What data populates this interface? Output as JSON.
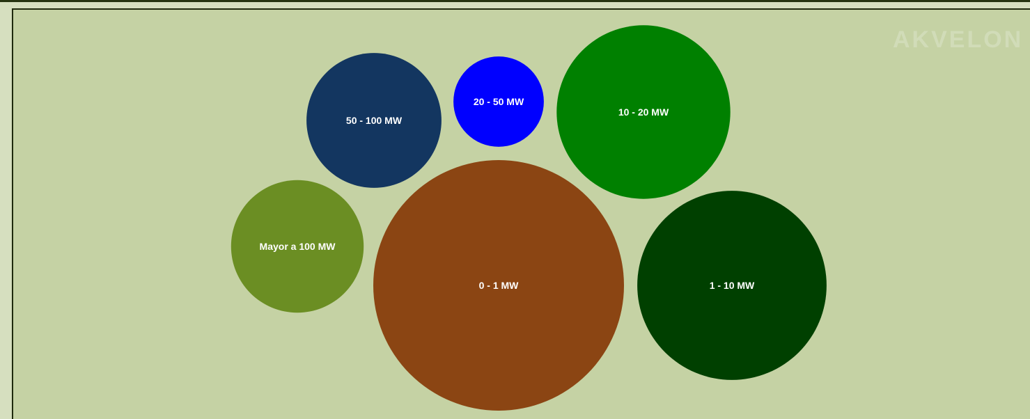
{
  "watermark": "AKVELON",
  "chart_data": {
    "type": "bubble",
    "title": "",
    "grid": false,
    "legend": "none",
    "series": [
      {
        "label": "0 - 1 MW",
        "value": 100,
        "color": "#8b4513"
      },
      {
        "label": "1 - 10 MW",
        "value": 57,
        "color": "#004000"
      },
      {
        "label": "10 - 20 MW",
        "value": 48,
        "color": "#008000"
      },
      {
        "label": "50 - 100 MW",
        "value": 29,
        "color": "#133660"
      },
      {
        "label": "Mayor a 100 MW",
        "value": 28,
        "color": "#6b8e23"
      },
      {
        "label": "20 - 50 MW",
        "value": 13,
        "color": "#0000ff"
      }
    ]
  }
}
